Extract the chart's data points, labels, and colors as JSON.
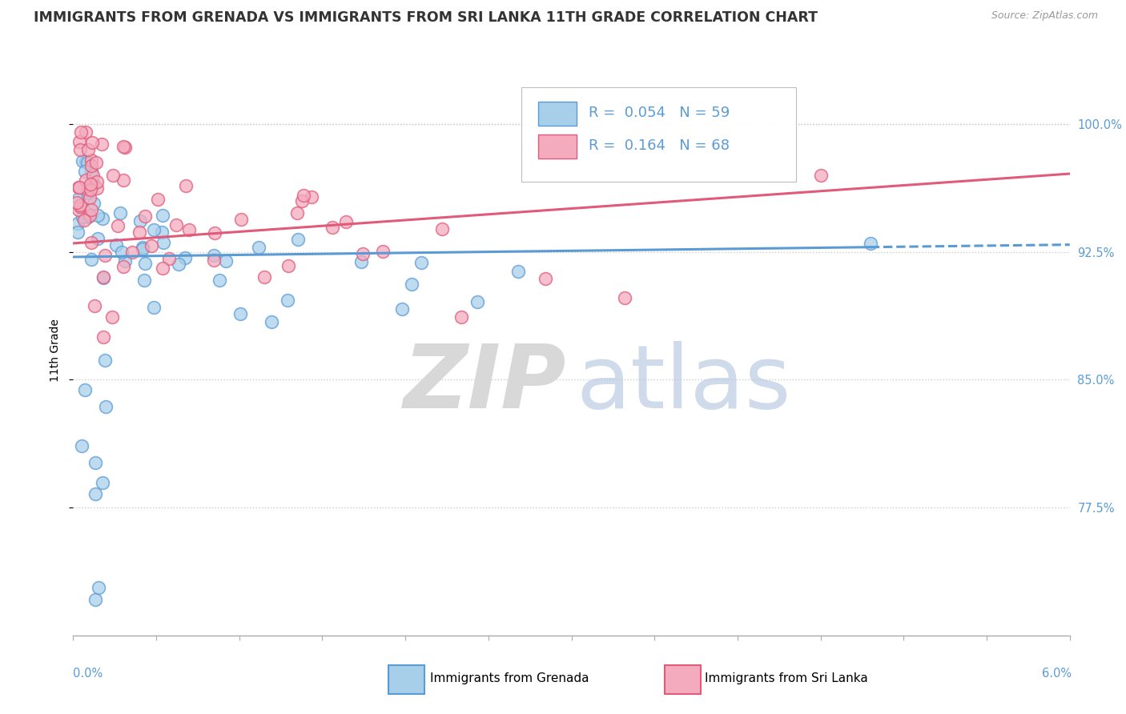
{
  "title": "IMMIGRANTS FROM GRENADA VS IMMIGRANTS FROM SRI LANKA 11TH GRADE CORRELATION CHART",
  "source": "Source: ZipAtlas.com",
  "ylabel": "11th Grade",
  "xmin": 0.0,
  "xmax": 6.0,
  "ymin": 70.0,
  "ymax": 103.5,
  "yticks": [
    77.5,
    85.0,
    92.5,
    100.0
  ],
  "ytick_labels": [
    "77.5%",
    "85.0%",
    "92.5%",
    "100.0%"
  ],
  "grenada_R": 0.054,
  "grenada_N": 59,
  "srilanka_R": 0.164,
  "srilanka_N": 68,
  "grenada_color": "#A8CFEA",
  "grenada_edge_color": "#5B9BD5",
  "srilanka_color": "#F4ABBE",
  "srilanka_edge_color": "#E05A7A",
  "grenada_line_color": "#5B9BD5",
  "srilanka_line_color": "#E05A7A",
  "right_label_color": "#5B9BD5",
  "title_color": "#333333",
  "source_color": "#999999",
  "watermark_zip_color": "#D8D8D8",
  "watermark_atlas_color": "#B0C4DE",
  "grid_color": "#CCCCCC",
  "bottom_spine_color": "#AAAAAA",
  "title_fontsize": 12.5,
  "axis_label_fontsize": 10,
  "tick_fontsize": 10.5,
  "legend_fontsize": 13,
  "scatter_size": 130,
  "scatter_alpha": 0.75,
  "scatter_linewidth": 1.2,
  "grenada_line_intercept": 92.2,
  "grenada_line_slope": 0.12,
  "srilanka_line_intercept": 93.0,
  "srilanka_line_slope": 0.68
}
